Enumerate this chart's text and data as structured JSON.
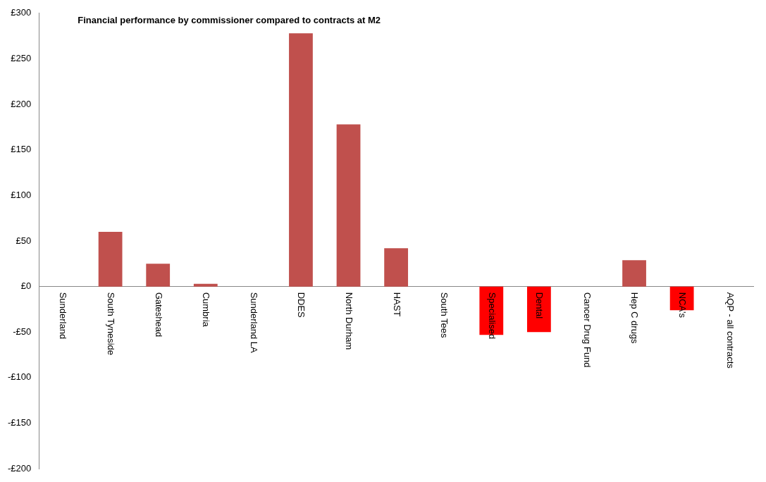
{
  "chart_data": {
    "type": "bar",
    "title": "Financial performance by commissioner compared to contracts at M2",
    "categories": [
      "Sunderland",
      "South Tyneside",
      "Gateshead",
      "Cumbria",
      "Sunderland LA",
      "DDES",
      "North Durham",
      "HAST",
      "South Tees",
      "Specialised",
      "Dental",
      "Cancer Drug Fund",
      "Hep C drugs",
      "NCA's",
      "AQP - all contracts"
    ],
    "values": [
      0,
      60,
      25,
      3,
      0,
      278,
      178,
      42,
      0,
      -53,
      -50,
      0,
      29,
      -26,
      0
    ],
    "colors": [
      "#c0504d",
      "#c0504d",
      "#c0504d",
      "#c0504d",
      "#c0504d",
      "#c0504d",
      "#c0504d",
      "#c0504d",
      "#c0504d",
      "#ff0000",
      "#ff0000",
      "#c0504d",
      "#c0504d",
      "#ff0000",
      "#c0504d"
    ],
    "ylim": [
      -200,
      300
    ],
    "yticks": [
      {
        "value": -200,
        "label": "-£200"
      },
      {
        "value": -150,
        "label": "-£150"
      },
      {
        "value": -100,
        "label": "-£100"
      },
      {
        "value": -50,
        "label": "-£50"
      },
      {
        "value": 0,
        "label": "£0"
      },
      {
        "value": 50,
        "label": "£50"
      },
      {
        "value": 100,
        "label": "£100"
      },
      {
        "value": 150,
        "label": "£150"
      },
      {
        "value": 200,
        "label": "£200"
      },
      {
        "value": 250,
        "label": "£250"
      },
      {
        "value": 300,
        "label": "£300"
      }
    ],
    "grid": false,
    "legend": false
  }
}
